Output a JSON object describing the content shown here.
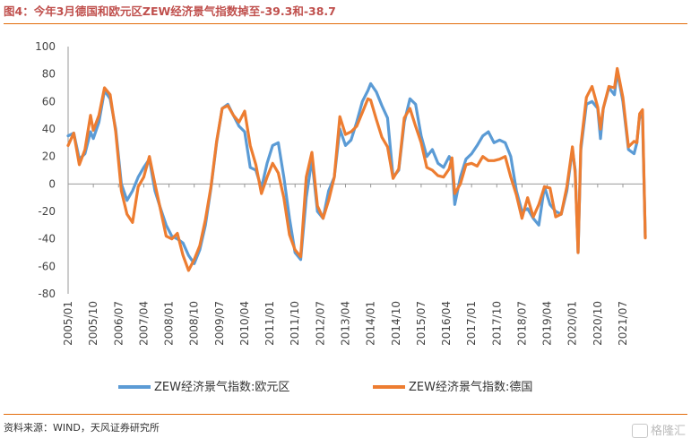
{
  "title": "图4：今年3月德国和欧元区ZEW经济景气指数掉至-39.3和-38.7",
  "source": "资料来源：WIND，天风证券研究所",
  "watermark": "格隆汇",
  "colors": {
    "eurozone": "#5b9bd5",
    "germany": "#ed7d31",
    "accent": "#e36c0a"
  },
  "chart_data": {
    "type": "line",
    "title": "",
    "xlabel": "",
    "ylabel": "",
    "ylim": [
      -80,
      100
    ],
    "yticks": [
      -80,
      -60,
      -40,
      -20,
      0,
      20,
      40,
      60,
      80,
      100
    ],
    "x_tick_labels": [
      "2005/01",
      "2005/10",
      "2006/07",
      "2007/04",
      "2008/01",
      "2008/10",
      "2009/07",
      "2010/04",
      "2011/01",
      "2011/10",
      "2012/07",
      "2013/04",
      "2014/01",
      "2014/10",
      "2015/07",
      "2016/04",
      "2017/01",
      "2017/10",
      "2018/07",
      "2019/04",
      "2020/01",
      "2020/10",
      "2021/07"
    ],
    "x_start": "2005/01",
    "x_end": "2022/03",
    "grid": "none",
    "legend_position": "bottom",
    "series": [
      {
        "name": "ZEW经济景气指数:欧元区",
        "points": [
          [
            "2005/01",
            35
          ],
          [
            "2005/03",
            37
          ],
          [
            "2005/05",
            18
          ],
          [
            "2005/07",
            22
          ],
          [
            "2005/09",
            38
          ],
          [
            "2005/10",
            33
          ],
          [
            "2005/12",
            45
          ],
          [
            "2006/02",
            68
          ],
          [
            "2006/04",
            62
          ],
          [
            "2006/06",
            40
          ],
          [
            "2006/08",
            0
          ],
          [
            "2006/10",
            -12
          ],
          [
            "2006/12",
            -5
          ],
          [
            "2007/02",
            5
          ],
          [
            "2007/04",
            12
          ],
          [
            "2007/06",
            18
          ],
          [
            "2007/08",
            -5
          ],
          [
            "2007/10",
            -18
          ],
          [
            "2007/12",
            -30
          ],
          [
            "2008/02",
            -38
          ],
          [
            "2008/04",
            -40
          ],
          [
            "2008/06",
            -43
          ],
          [
            "2008/08",
            -52
          ],
          [
            "2008/10",
            -58
          ],
          [
            "2008/12",
            -48
          ],
          [
            "2009/02",
            -30
          ],
          [
            "2009/04",
            -3
          ],
          [
            "2009/06",
            30
          ],
          [
            "2009/08",
            55
          ],
          [
            "2009/10",
            58
          ],
          [
            "2009/12",
            50
          ],
          [
            "2010/02",
            42
          ],
          [
            "2010/04",
            38
          ],
          [
            "2010/06",
            12
          ],
          [
            "2010/08",
            10
          ],
          [
            "2010/10",
            -3
          ],
          [
            "2010/12",
            15
          ],
          [
            "2011/02",
            28
          ],
          [
            "2011/04",
            30
          ],
          [
            "2011/06",
            5
          ],
          [
            "2011/08",
            -25
          ],
          [
            "2011/10",
            -50
          ],
          [
            "2011/12",
            -55
          ],
          [
            "2012/02",
            -10
          ],
          [
            "2012/04",
            18
          ],
          [
            "2012/06",
            -20
          ],
          [
            "2012/08",
            -25
          ],
          [
            "2012/10",
            -5
          ],
          [
            "2012/12",
            5
          ],
          [
            "2013/02",
            40
          ],
          [
            "2013/04",
            28
          ],
          [
            "2013/06",
            32
          ],
          [
            "2013/08",
            45
          ],
          [
            "2013/10",
            60
          ],
          [
            "2013/12",
            68
          ],
          [
            "2014/01",
            73
          ],
          [
            "2014/03",
            67
          ],
          [
            "2014/05",
            57
          ],
          [
            "2014/07",
            48
          ],
          [
            "2014/09",
            5
          ],
          [
            "2014/11",
            10
          ],
          [
            "2015/01",
            45
          ],
          [
            "2015/03",
            62
          ],
          [
            "2015/05",
            58
          ],
          [
            "2015/07",
            35
          ],
          [
            "2015/09",
            20
          ],
          [
            "2015/11",
            25
          ],
          [
            "2016/01",
            15
          ],
          [
            "2016/03",
            12
          ],
          [
            "2016/05",
            20
          ],
          [
            "2016/06",
            15
          ],
          [
            "2016/07",
            -15
          ],
          [
            "2016/09",
            5
          ],
          [
            "2016/11",
            18
          ],
          [
            "2017/01",
            22
          ],
          [
            "2017/03",
            28
          ],
          [
            "2017/05",
            35
          ],
          [
            "2017/07",
            38
          ],
          [
            "2017/09",
            30
          ],
          [
            "2017/11",
            32
          ],
          [
            "2018/01",
            30
          ],
          [
            "2018/03",
            20
          ],
          [
            "2018/05",
            -5
          ],
          [
            "2018/07",
            -20
          ],
          [
            "2018/09",
            -18
          ],
          [
            "2018/11",
            -25
          ],
          [
            "2019/01",
            -30
          ],
          [
            "2019/03",
            -2
          ],
          [
            "2019/05",
            -15
          ],
          [
            "2019/07",
            -20
          ],
          [
            "2019/09",
            -22
          ],
          [
            "2019/11",
            -5
          ],
          [
            "2020/01",
            25
          ],
          [
            "2020/02",
            10
          ],
          [
            "2020/03",
            -50
          ],
          [
            "2020/04",
            25
          ],
          [
            "2020/06",
            58
          ],
          [
            "2020/08",
            60
          ],
          [
            "2020/10",
            55
          ],
          [
            "2020/11",
            33
          ],
          [
            "2020/12",
            55
          ],
          [
            "2021/02",
            70
          ],
          [
            "2021/04",
            65
          ],
          [
            "2021/05",
            82
          ],
          [
            "2021/07",
            60
          ],
          [
            "2021/09",
            25
          ],
          [
            "2021/11",
            22
          ],
          [
            "2021/12",
            30
          ],
          [
            "2022/01",
            50
          ],
          [
            "2022/02",
            48
          ],
          [
            "2022/03",
            -38.7
          ]
        ]
      },
      {
        "name": "ZEW经济景气指数:德国",
        "points": [
          [
            "2005/01",
            28
          ],
          [
            "2005/03",
            37
          ],
          [
            "2005/05",
            14
          ],
          [
            "2005/07",
            25
          ],
          [
            "2005/09",
            50
          ],
          [
            "2005/10",
            39
          ],
          [
            "2005/12",
            50
          ],
          [
            "2006/02",
            70
          ],
          [
            "2006/04",
            65
          ],
          [
            "2006/06",
            38
          ],
          [
            "2006/08",
            -5
          ],
          [
            "2006/10",
            -22
          ],
          [
            "2006/12",
            -28
          ],
          [
            "2007/02",
            -2
          ],
          [
            "2007/04",
            5
          ],
          [
            "2007/06",
            20
          ],
          [
            "2007/08",
            0
          ],
          [
            "2007/10",
            -19
          ],
          [
            "2007/12",
            -38
          ],
          [
            "2008/02",
            -40
          ],
          [
            "2008/04",
            -36
          ],
          [
            "2008/06",
            -52
          ],
          [
            "2008/08",
            -63
          ],
          [
            "2008/10",
            -55
          ],
          [
            "2008/12",
            -45
          ],
          [
            "2009/02",
            -26
          ],
          [
            "2009/04",
            -2
          ],
          [
            "2009/06",
            31
          ],
          [
            "2009/08",
            55
          ],
          [
            "2009/10",
            57
          ],
          [
            "2009/12",
            50
          ],
          [
            "2010/02",
            45
          ],
          [
            "2010/04",
            53
          ],
          [
            "2010/06",
            28
          ],
          [
            "2010/08",
            14
          ],
          [
            "2010/10",
            -7
          ],
          [
            "2010/12",
            5
          ],
          [
            "2011/02",
            15
          ],
          [
            "2011/04",
            8
          ],
          [
            "2011/06",
            -10
          ],
          [
            "2011/08",
            -37
          ],
          [
            "2011/10",
            -48
          ],
          [
            "2011/12",
            -53
          ],
          [
            "2012/02",
            5
          ],
          [
            "2012/04",
            23
          ],
          [
            "2012/06",
            -16
          ],
          [
            "2012/08",
            -25
          ],
          [
            "2012/10",
            -12
          ],
          [
            "2012/12",
            5
          ],
          [
            "2013/02",
            49
          ],
          [
            "2013/04",
            36
          ],
          [
            "2013/06",
            38
          ],
          [
            "2013/08",
            42
          ],
          [
            "2013/10",
            52
          ],
          [
            "2013/12",
            62
          ],
          [
            "2014/01",
            61
          ],
          [
            "2014/03",
            47
          ],
          [
            "2014/05",
            34
          ],
          [
            "2014/07",
            27
          ],
          [
            "2014/09",
            4
          ],
          [
            "2014/11",
            11
          ],
          [
            "2015/01",
            48
          ],
          [
            "2015/03",
            55
          ],
          [
            "2015/05",
            42
          ],
          [
            "2015/07",
            30
          ],
          [
            "2015/09",
            12
          ],
          [
            "2015/11",
            10
          ],
          [
            "2016/01",
            6
          ],
          [
            "2016/03",
            5
          ],
          [
            "2016/05",
            11
          ],
          [
            "2016/06",
            19
          ],
          [
            "2016/07",
            -7
          ],
          [
            "2016/09",
            0
          ],
          [
            "2016/11",
            14
          ],
          [
            "2017/01",
            15
          ],
          [
            "2017/03",
            13
          ],
          [
            "2017/05",
            20
          ],
          [
            "2017/07",
            17
          ],
          [
            "2017/09",
            17
          ],
          [
            "2017/11",
            18
          ],
          [
            "2018/01",
            20
          ],
          [
            "2018/03",
            5
          ],
          [
            "2018/05",
            -8
          ],
          [
            "2018/07",
            -25
          ],
          [
            "2018/09",
            -10
          ],
          [
            "2018/11",
            -24
          ],
          [
            "2019/01",
            -15
          ],
          [
            "2019/03",
            -2
          ],
          [
            "2019/05",
            -3
          ],
          [
            "2019/07",
            -24
          ],
          [
            "2019/09",
            -22
          ],
          [
            "2019/11",
            -2
          ],
          [
            "2020/01",
            27
          ],
          [
            "2020/02",
            8
          ],
          [
            "2020/03",
            -50
          ],
          [
            "2020/04",
            28
          ],
          [
            "2020/06",
            63
          ],
          [
            "2020/08",
            71
          ],
          [
            "2020/10",
            56
          ],
          [
            "2020/11",
            40
          ],
          [
            "2020/12",
            55
          ],
          [
            "2021/02",
            71
          ],
          [
            "2021/04",
            70
          ],
          [
            "2021/05",
            84
          ],
          [
            "2021/07",
            63
          ],
          [
            "2021/09",
            27
          ],
          [
            "2021/11",
            31
          ],
          [
            "2021/12",
            30
          ],
          [
            "2022/01",
            51
          ],
          [
            "2022/02",
            54
          ],
          [
            "2022/03",
            -39.3
          ]
        ]
      }
    ]
  }
}
